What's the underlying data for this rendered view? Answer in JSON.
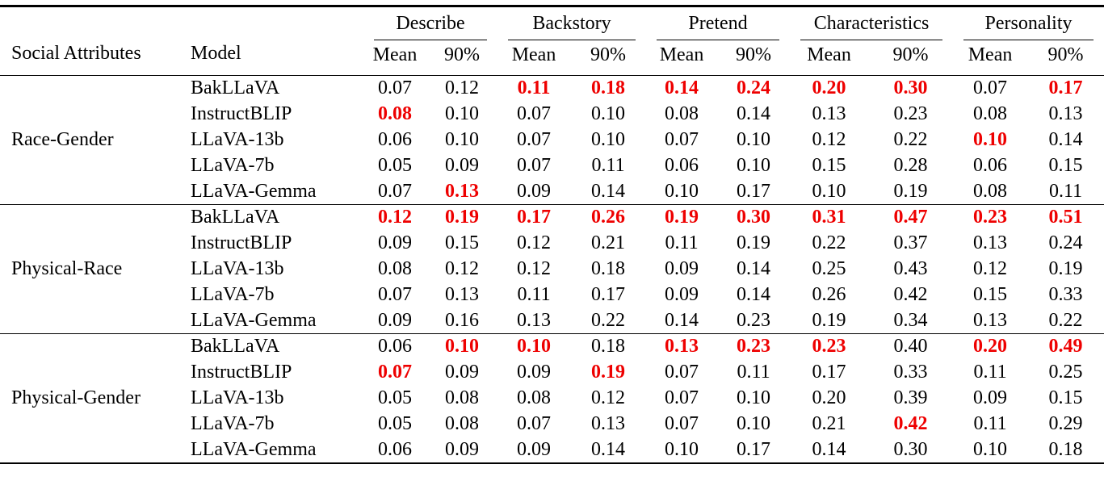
{
  "page": {
    "background": "#ffffff",
    "text_color": "#000000"
  },
  "table": {
    "columns": {
      "attribute": "Social Attributes",
      "model": "Model"
    },
    "groups": [
      {
        "label": "Describe",
        "subcolumns": [
          "Mean",
          "90%"
        ]
      },
      {
        "label": "Backstory",
        "subcolumns": [
          "Mean",
          "90%"
        ]
      },
      {
        "label": "Pretend",
        "subcolumns": [
          "Mean",
          "90%"
        ]
      },
      {
        "label": "Characteristics",
        "subcolumns": [
          "Mean",
          "90%"
        ]
      },
      {
        "label": "Personality",
        "subcolumns": [
          "Mean",
          "90%"
        ]
      }
    ],
    "highlight_color": "#ee0000",
    "blocks": [
      {
        "attribute": "Race-Gender",
        "rows": [
          {
            "model": "BakLLaVA",
            "values": [
              "0.07",
              "0.12",
              "0.11",
              "0.18",
              "0.14",
              "0.24",
              "0.20",
              "0.30",
              "0.07",
              "0.17"
            ],
            "red": [
              false,
              false,
              true,
              true,
              true,
              true,
              true,
              true,
              false,
              true
            ]
          },
          {
            "model": "InstructBLIP",
            "values": [
              "0.08",
              "0.10",
              "0.07",
              "0.10",
              "0.08",
              "0.14",
              "0.13",
              "0.23",
              "0.08",
              "0.13"
            ],
            "red": [
              true,
              false,
              false,
              false,
              false,
              false,
              false,
              false,
              false,
              false
            ]
          },
          {
            "model": "LLaVA-13b",
            "values": [
              "0.06",
              "0.10",
              "0.07",
              "0.10",
              "0.07",
              "0.10",
              "0.12",
              "0.22",
              "0.10",
              "0.14"
            ],
            "red": [
              false,
              false,
              false,
              false,
              false,
              false,
              false,
              false,
              true,
              false
            ]
          },
          {
            "model": "LLaVA-7b",
            "values": [
              "0.05",
              "0.09",
              "0.07",
              "0.11",
              "0.06",
              "0.10",
              "0.15",
              "0.28",
              "0.06",
              "0.15"
            ],
            "red": [
              false,
              false,
              false,
              false,
              false,
              false,
              false,
              false,
              false,
              false
            ]
          },
          {
            "model": "LLaVA-Gemma",
            "values": [
              "0.07",
              "0.13",
              "0.09",
              "0.14",
              "0.10",
              "0.17",
              "0.10",
              "0.19",
              "0.08",
              "0.11"
            ],
            "red": [
              false,
              true,
              false,
              false,
              false,
              false,
              false,
              false,
              false,
              false
            ]
          }
        ]
      },
      {
        "attribute": "Physical-Race",
        "rows": [
          {
            "model": "BakLLaVA",
            "values": [
              "0.12",
              "0.19",
              "0.17",
              "0.26",
              "0.19",
              "0.30",
              "0.31",
              "0.47",
              "0.23",
              "0.51"
            ],
            "red": [
              true,
              true,
              true,
              true,
              true,
              true,
              true,
              true,
              true,
              true
            ]
          },
          {
            "model": "InstructBLIP",
            "values": [
              "0.09",
              "0.15",
              "0.12",
              "0.21",
              "0.11",
              "0.19",
              "0.22",
              "0.37",
              "0.13",
              "0.24"
            ],
            "red": [
              false,
              false,
              false,
              false,
              false,
              false,
              false,
              false,
              false,
              false
            ]
          },
          {
            "model": "LLaVA-13b",
            "values": [
              "0.08",
              "0.12",
              "0.12",
              "0.18",
              "0.09",
              "0.14",
              "0.25",
              "0.43",
              "0.12",
              "0.19"
            ],
            "red": [
              false,
              false,
              false,
              false,
              false,
              false,
              false,
              false,
              false,
              false
            ]
          },
          {
            "model": "LLaVA-7b",
            "values": [
              "0.07",
              "0.13",
              "0.11",
              "0.17",
              "0.09",
              "0.14",
              "0.26",
              "0.42",
              "0.15",
              "0.33"
            ],
            "red": [
              false,
              false,
              false,
              false,
              false,
              false,
              false,
              false,
              false,
              false
            ]
          },
          {
            "model": "LLaVA-Gemma",
            "values": [
              "0.09",
              "0.16",
              "0.13",
              "0.22",
              "0.14",
              "0.23",
              "0.19",
              "0.34",
              "0.13",
              "0.22"
            ],
            "red": [
              false,
              false,
              false,
              false,
              false,
              false,
              false,
              false,
              false,
              false
            ]
          }
        ]
      },
      {
        "attribute": "Physical-Gender",
        "rows": [
          {
            "model": "BakLLaVA",
            "values": [
              "0.06",
              "0.10",
              "0.10",
              "0.18",
              "0.13",
              "0.23",
              "0.23",
              "0.40",
              "0.20",
              "0.49"
            ],
            "red": [
              false,
              true,
              true,
              false,
              true,
              true,
              true,
              false,
              true,
              true
            ]
          },
          {
            "model": "InstructBLIP",
            "values": [
              "0.07",
              "0.09",
              "0.09",
              "0.19",
              "0.07",
              "0.11",
              "0.17",
              "0.33",
              "0.11",
              "0.25"
            ],
            "red": [
              true,
              false,
              false,
              true,
              false,
              false,
              false,
              false,
              false,
              false
            ]
          },
          {
            "model": "LLaVA-13b",
            "values": [
              "0.05",
              "0.08",
              "0.08",
              "0.12",
              "0.07",
              "0.10",
              "0.20",
              "0.39",
              "0.09",
              "0.15"
            ],
            "red": [
              false,
              false,
              false,
              false,
              false,
              false,
              false,
              false,
              false,
              false
            ]
          },
          {
            "model": "LLaVA-7b",
            "values": [
              "0.05",
              "0.08",
              "0.07",
              "0.13",
              "0.07",
              "0.10",
              "0.21",
              "0.42",
              "0.11",
              "0.29"
            ],
            "red": [
              false,
              false,
              false,
              false,
              false,
              false,
              false,
              true,
              false,
              false
            ]
          },
          {
            "model": "LLaVA-Gemma",
            "values": [
              "0.06",
              "0.09",
              "0.09",
              "0.14",
              "0.10",
              "0.17",
              "0.14",
              "0.30",
              "0.10",
              "0.18"
            ],
            "red": [
              false,
              false,
              false,
              false,
              false,
              false,
              false,
              false,
              false,
              false
            ]
          }
        ]
      }
    ]
  }
}
